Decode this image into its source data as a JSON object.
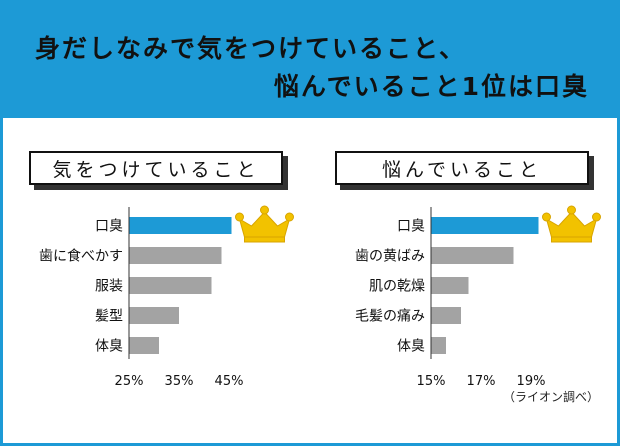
{
  "header": {
    "line1": "身だしなみで気をつけていること、",
    "line2": "悩んでいること1位は口臭"
  },
  "colors": {
    "brand_blue": "#1d9ad6",
    "bar_highlight": "#1d9ad6",
    "bar_normal": "#a3a3a3",
    "crown": "#f2c200"
  },
  "footnote": "（ライオン調べ）",
  "chart_data": [
    {
      "type": "bar",
      "orientation": "horizontal",
      "title": "気をつけていること",
      "categories": [
        "口臭",
        "歯に食べかす",
        "服装",
        "髪型",
        "体臭"
      ],
      "values": [
        45.5,
        43.5,
        41.5,
        35,
        31
      ],
      "highlight_index": 0,
      "xlim": [
        25,
        45
      ],
      "xticks": [
        25,
        35,
        45
      ],
      "xtick_labels": [
        "25%",
        "35%",
        "45%"
      ],
      "grid": false,
      "icon": "crown-icon"
    },
    {
      "type": "bar",
      "orientation": "horizontal",
      "title": "悩んでいること",
      "categories": [
        "口臭",
        "歯の黄ばみ",
        "肌の乾燥",
        "毛髪の痛み",
        "体臭"
      ],
      "values": [
        19.3,
        18.3,
        16.5,
        16.2,
        15.6
      ],
      "highlight_index": 0,
      "xlim": [
        15,
        19
      ],
      "xticks": [
        15,
        17,
        19
      ],
      "xtick_labels": [
        "15%",
        "17%",
        "19%"
      ],
      "grid": false,
      "icon": "crown-icon"
    }
  ]
}
